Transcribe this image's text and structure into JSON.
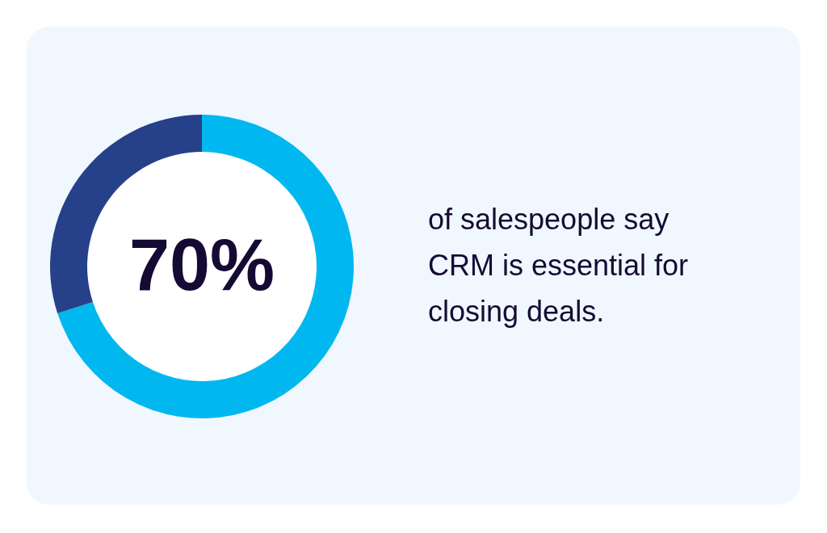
{
  "chart_data": {
    "type": "donut",
    "categories": [
      null,
      null
    ],
    "values": [
      70,
      30
    ],
    "colors": [
      "#00b8ef",
      "#26418a"
    ],
    "value_labels": [
      "70%",
      null
    ],
    "annotations": [
      "of salespeople say CRM is essential for closing deals."
    ]
  }
}
